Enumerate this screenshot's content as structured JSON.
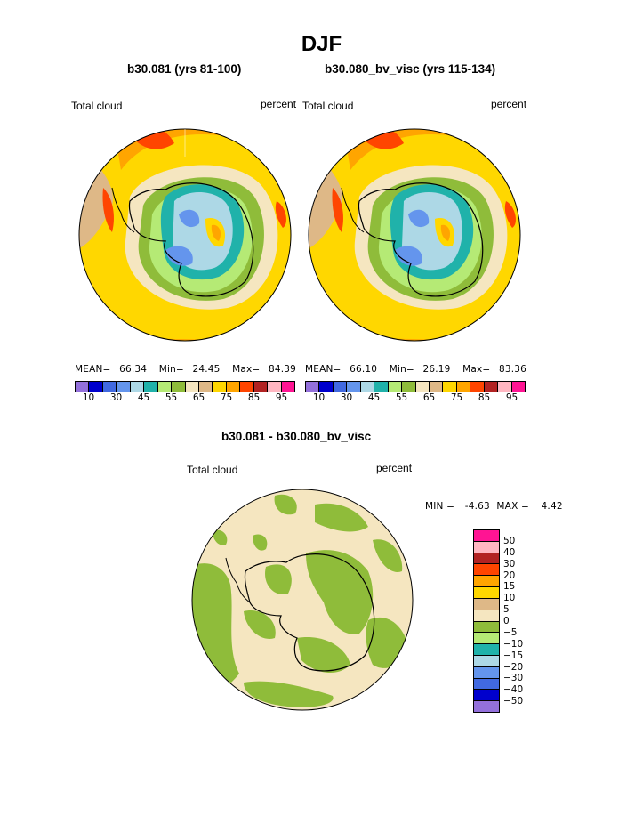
{
  "title": "DJF",
  "panels": [
    {
      "title": "b30.081 (yrs 81-100)",
      "left_label": "Total cloud",
      "right_label": "percent",
      "stats": {
        "mean_label": "MEAN=",
        "mean": "66.34",
        "min_label": "Min=",
        "min": "24.45",
        "max_label": "Max=",
        "max": "84.39"
      }
    },
    {
      "title": "b30.080_bv_visc (yrs 115-134)",
      "left_label": "Total cloud",
      "right_label": "percent",
      "stats": {
        "mean_label": "MEAN=",
        "mean": "66.10",
        "min_label": "Min=",
        "min": "26.19",
        "max_label": "Max=",
        "max": "83.36"
      }
    }
  ],
  "diff": {
    "title": "b30.081 - b30.080_bv_visc",
    "left_label": "Total cloud",
    "right_label": "percent",
    "min_text": "MIN =",
    "min": "-4.63",
    "max_text": "MAX =",
    "max": "4.42"
  },
  "colorbar": {
    "colors": [
      "#9370db",
      "#0000cd",
      "#4169e1",
      "#6495ed",
      "#add8e6",
      "#20b2aa",
      "#b5ea75",
      "#8fbc3a",
      "#f5e6c0",
      "#deb887",
      "#ffd700",
      "#ffa500",
      "#ff4500",
      "#b22222",
      "#ffb6c1",
      "#ff1493"
    ],
    "labels": [
      "10",
      "30",
      "45",
      "55",
      "65",
      "75",
      "85",
      "95"
    ]
  },
  "diff_colorbar": {
    "colors": [
      "#ff1493",
      "#ffb6c1",
      "#b22222",
      "#ff4500",
      "#ffa500",
      "#ffd700",
      "#deb887",
      "#f5e6c0",
      "#8fbc3a",
      "#b5ea75",
      "#20b2aa",
      "#add8e6",
      "#6495ed",
      "#4169e1",
      "#0000cd",
      "#9370db"
    ],
    "labels": [
      "50",
      "40",
      "30",
      "20",
      "15",
      "10",
      "5",
      "0",
      "-5",
      "-10",
      "-15",
      "-20",
      "-30",
      "-40",
      "-50"
    ]
  }
}
